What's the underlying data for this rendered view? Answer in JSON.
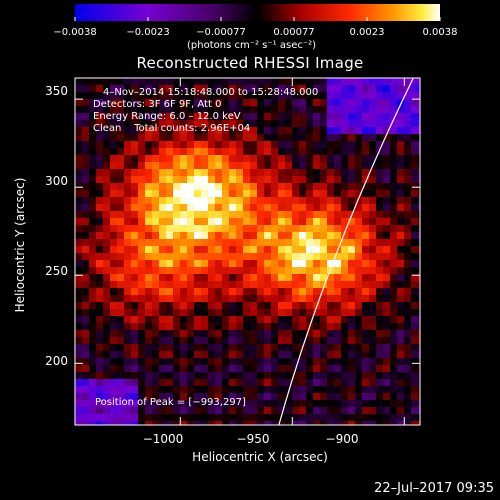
{
  "chart_data": {
    "type": "heatmap",
    "title": "Reconstructed RHESSI Image",
    "xlabel": "Heliocentric X (arcsec)",
    "ylabel": "Heliocentric Y (arcsec)",
    "xlim": [
      -1047,
      -893
    ],
    "ylim": [
      165,
      362
    ],
    "x_ticks": [
      "−1000",
      "−950",
      "−900"
    ],
    "x_tick_values": [
      -1000,
      -950,
      -900
    ],
    "y_ticks": [
      "200",
      "250",
      "300",
      "350"
    ],
    "y_tick_values": [
      200,
      250,
      300,
      350
    ],
    "colorbar": {
      "ticks": [
        "−0.0038",
        "−0.0023",
        "−0.00077",
        "0.00077",
        "0.0023",
        "0.0038"
      ],
      "range": [
        -0.0038,
        0.0038
      ],
      "label": "(photons cm⁻² s⁻¹ asec⁻²)"
    },
    "annotations": {
      "time": "4–Nov–2014 15:18:48.000 to 15:28:48.000",
      "detectors": "Detectors: 3F 6F 9F, Att 0",
      "energy": "Energy Range: 6.0 – 12.0 keV",
      "clean": "Clean    Total counts: 2.96E+04",
      "peak": "Position of Peak = [−993,297]"
    },
    "sources": [
      {
        "x": -993,
        "y": 297,
        "peak": 1.0
      },
      {
        "x": -940,
        "y": 262,
        "peak": 0.95
      },
      {
        "x": -1010,
        "y": 255,
        "peak": 0.55
      }
    ],
    "grid": false
  },
  "footer": {
    "date": "22–Jul–2017 09:35"
  }
}
